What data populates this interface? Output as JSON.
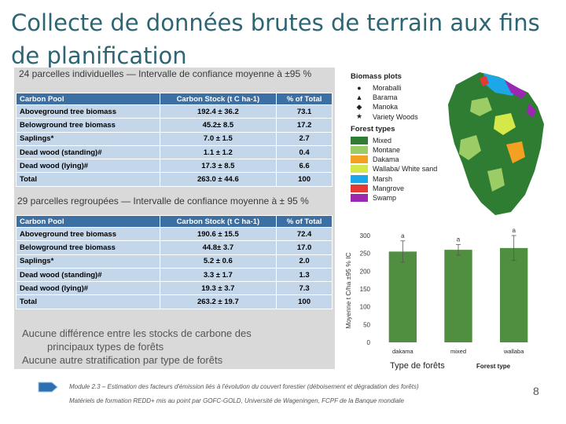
{
  "slide": {
    "title": "Collecte de données brutes de terrain aux fins de planification",
    "page_number": "8"
  },
  "table1": {
    "subtitle": "24 parcelles individuelles — Intervalle de confiance moyenne à ±95 %",
    "headers": [
      "Carbon Pool",
      "Carbon Stock (t C ha-1)",
      "% of Total"
    ],
    "rows": [
      [
        "Aboveground tree biomass",
        "192.4 ± 36.2",
        "73.1"
      ],
      [
        "Belowground tree biomass",
        "45.2± 8.5",
        "17.2"
      ],
      [
        "Saplings*",
        "7.0 ± 1.5",
        "2.7"
      ],
      [
        "Dead wood (standing)#",
        "1.1 ± 1.2",
        "0.4"
      ],
      [
        "Dead wood (lying)#",
        "17.3 ± 8.5",
        "6.6"
      ],
      [
        "Total",
        "263.0 ± 44.6",
        "100"
      ]
    ]
  },
  "table2": {
    "subtitle": "29 parcelles regroupées — Intervalle de confiance moyenne à ± 95 %",
    "headers": [
      "Carbon Pool",
      "Carbon Stock (t C ha-1)",
      "% of Total"
    ],
    "rows": [
      [
        "Aboveground tree biomass",
        "190.6 ± 15.5",
        "72.4"
      ],
      [
        "Belowground tree biomass",
        "44.8± 3.7",
        "17.0"
      ],
      [
        "Saplings*",
        "5.2 ± 0.6",
        "2.0"
      ],
      [
        "Dead wood (standing)#",
        "3.3 ± 1.7",
        "1.3"
      ],
      [
        "Dead wood (lying)#",
        "19.3 ± 3.7",
        "7.3"
      ],
      [
        "Total",
        "263.2 ± 19.7",
        "100"
      ]
    ]
  },
  "note": {
    "line1": "Aucune différence entre les stocks de carbone des",
    "line2": "principaux types de forêts",
    "line3": "Aucune autre stratification par type de forêts"
  },
  "map_legend": {
    "plots_title": "Biomass plots",
    "plots": [
      {
        "label": "Moraballi",
        "symbol": "●"
      },
      {
        "label": "Barama",
        "symbol": "▲"
      },
      {
        "label": "Manoka",
        "symbol": "◆"
      },
      {
        "label": "Variety Woods",
        "symbol": "★"
      }
    ],
    "forest_title": "Forest types",
    "forest": [
      {
        "label": "Mixed",
        "color": "#2e7d32"
      },
      {
        "label": "Montane",
        "color": "#9ccc65"
      },
      {
        "label": "Dakama",
        "color": "#f4a020"
      },
      {
        "label": "Wallaba/ White sand",
        "color": "#d4e84a"
      },
      {
        "label": "Marsh",
        "color": "#1ba7e8"
      },
      {
        "label": "Mangrove",
        "color": "#e53935"
      },
      {
        "label": "Swamp",
        "color": "#9c27b0"
      }
    ]
  },
  "chart_data": {
    "type": "bar",
    "categories": [
      "dakama",
      "mixed",
      "wallaba"
    ],
    "values": [
      255,
      260,
      265
    ],
    "errors": [
      30,
      15,
      35
    ],
    "letters": [
      "a",
      "a",
      "a"
    ],
    "ylim": [
      0,
      300
    ],
    "yticks": [
      0,
      50,
      100,
      150,
      200,
      250,
      300
    ],
    "ylabel": "Moyenne t C/ha ±95 % IC",
    "xlabel": "Type de forêts",
    "forest_type_label": "Forest type",
    "bar_color": "#4f8f3f"
  },
  "footer": {
    "line1": "Module 2.3 – Estimation des facteurs d'émission liés à l'évolution du couvert forestier (déboisement et dégradation des forêts)",
    "line2": "Matériels de formation REDD+ mis au point par GOFC-GOLD, Université de Wageningen, FCPF de la Banque mondiale"
  }
}
